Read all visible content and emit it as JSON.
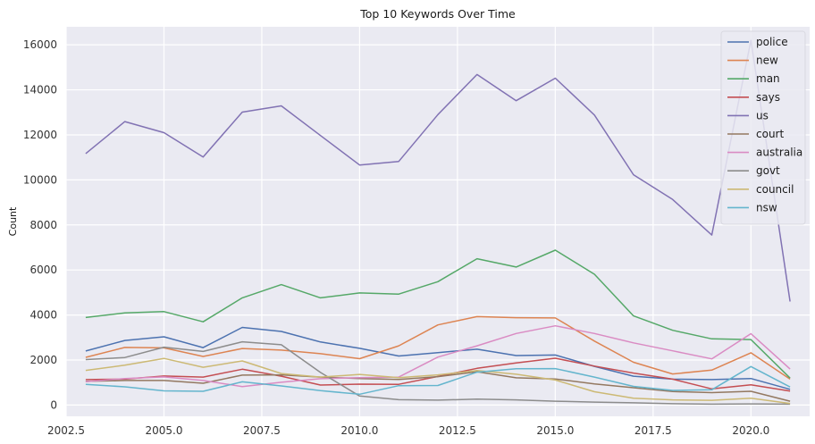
{
  "chart_data": {
    "type": "line",
    "title": "Top 10 Keywords Over Time",
    "xlabel": "",
    "ylabel": "Count",
    "xlim": [
      2002.5,
      2021.5
    ],
    "ylim": [
      -500,
      16800
    ],
    "x_ticks": [
      2002.5,
      2005.0,
      2007.5,
      2010.0,
      2012.5,
      2015.0,
      2017.5,
      2020.0
    ],
    "x_tick_labels": [
      "2002.5",
      "2005.0",
      "2007.5",
      "2010.0",
      "2012.5",
      "2015.0",
      "2017.5",
      "2020.0"
    ],
    "y_ticks": [
      0,
      2000,
      4000,
      6000,
      8000,
      10000,
      12000,
      14000,
      16000
    ],
    "y_tick_labels": [
      "0",
      "2000",
      "4000",
      "6000",
      "8000",
      "10000",
      "12000",
      "14000",
      "16000"
    ],
    "grid": true,
    "legend_position": "top-right",
    "x": [
      2003,
      2004,
      2005,
      2006,
      2007,
      2008,
      2009,
      2010,
      2011,
      2012,
      2013,
      2014,
      2015,
      2016,
      2017,
      2018,
      2019,
      2020,
      2021
    ],
    "series": [
      {
        "name": "police",
        "color": "#4c72b0",
        "values": [
          2400,
          2870,
          3030,
          2550,
          3450,
          3270,
          2800,
          2520,
          2180,
          2330,
          2480,
          2200,
          2220,
          1720,
          1280,
          1150,
          1130,
          1180,
          700
        ]
      },
      {
        "name": "new",
        "color": "#dd8452",
        "values": [
          2120,
          2560,
          2540,
          2160,
          2510,
          2440,
          2280,
          2060,
          2630,
          3560,
          3930,
          3880,
          3870,
          2840,
          1900,
          1380,
          1550,
          2320,
          1150
        ]
      },
      {
        "name": "man",
        "color": "#55a868",
        "values": [
          3890,
          4090,
          4150,
          3700,
          4760,
          5350,
          4760,
          4980,
          4930,
          5480,
          6500,
          6130,
          6880,
          5810,
          3960,
          3320,
          2940,
          2910,
          1200
        ]
      },
      {
        "name": "says",
        "color": "#c44e52",
        "values": [
          1130,
          1150,
          1290,
          1240,
          1590,
          1280,
          890,
          930,
          920,
          1270,
          1630,
          1870,
          2080,
          1730,
          1420,
          1150,
          720,
          900,
          620
        ]
      },
      {
        "name": "us",
        "color": "#8172b3",
        "values": [
          11170,
          12590,
          12100,
          11020,
          13010,
          13290,
          11970,
          10660,
          10820,
          12900,
          14680,
          13520,
          14520,
          12880,
          10230,
          9130,
          7550,
          16200,
          4600
        ]
      },
      {
        "name": "court",
        "color": "#937860",
        "values": [
          1050,
          1090,
          1090,
          970,
          1330,
          1340,
          1240,
          1180,
          1140,
          1260,
          1480,
          1210,
          1160,
          940,
          770,
          600,
          550,
          610,
          170
        ]
      },
      {
        "name": "australia",
        "color": "#da8bc3",
        "values": [
          1040,
          1180,
          1250,
          1090,
          820,
          1010,
          1170,
          1220,
          1240,
          2130,
          2630,
          3180,
          3520,
          3180,
          2760,
          2410,
          2050,
          3170,
          1600
        ]
      },
      {
        "name": "govt",
        "color": "#8c8c8c",
        "values": [
          2020,
          2110,
          2570,
          2380,
          2810,
          2680,
          1450,
          400,
          240,
          220,
          260,
          230,
          170,
          130,
          100,
          60,
          40,
          50,
          40
        ]
      },
      {
        "name": "council",
        "color": "#ccb974",
        "values": [
          1540,
          1770,
          2070,
          1680,
          1960,
          1400,
          1240,
          1360,
          1220,
          1340,
          1530,
          1370,
          1110,
          590,
          300,
          230,
          210,
          300,
          70
        ]
      },
      {
        "name": "nsw",
        "color": "#64b5cd",
        "values": [
          920,
          810,
          630,
          610,
          1030,
          850,
          640,
          480,
          860,
          870,
          1460,
          1610,
          1620,
          1240,
          830,
          650,
          680,
          1710,
          800
        ]
      }
    ]
  }
}
